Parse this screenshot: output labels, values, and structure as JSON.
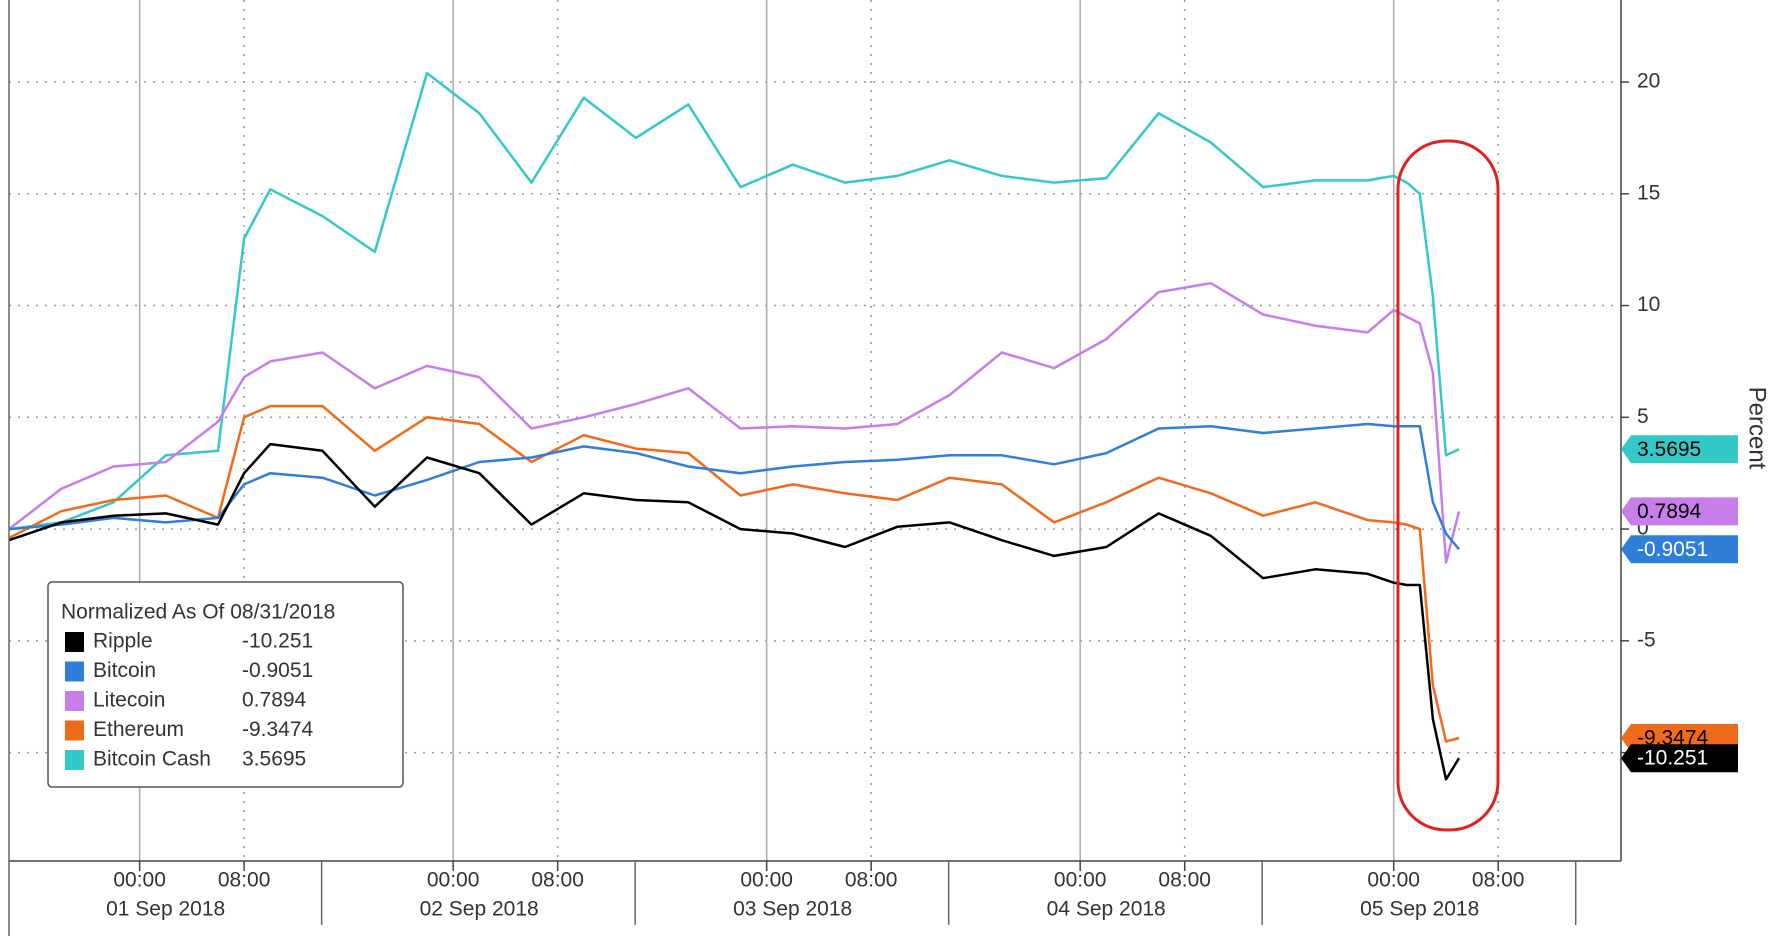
{
  "chart_data": {
    "type": "line",
    "legend_title": "Normalized As Of 08/31/2018",
    "y_label": "Percent",
    "x": [
      "2018-08-31T14:00",
      "2018-08-31T18:00",
      "2018-08-31T22:00",
      "2018-09-01T02:00",
      "2018-09-01T06:00",
      "2018-09-01T08:00",
      "2018-09-01T10:00",
      "2018-09-01T14:00",
      "2018-09-01T18:00",
      "2018-09-01T22:00",
      "2018-09-02T02:00",
      "2018-09-02T06:00",
      "2018-09-02T10:00",
      "2018-09-02T14:00",
      "2018-09-02T18:00",
      "2018-09-02T22:00",
      "2018-09-03T02:00",
      "2018-09-03T06:00",
      "2018-09-03T10:00",
      "2018-09-03T14:00",
      "2018-09-03T18:00",
      "2018-09-03T22:00",
      "2018-09-04T02:00",
      "2018-09-04T06:00",
      "2018-09-04T10:00",
      "2018-09-04T14:00",
      "2018-09-04T18:00",
      "2018-09-04T22:00",
      "2018-09-05T00:00",
      "2018-09-05T01:00",
      "2018-09-05T02:00",
      "2018-09-05T03:00",
      "2018-09-05T04:00",
      "2018-09-05T05:00"
    ],
    "series": [
      {
        "name": "Ripple",
        "color": "#000000",
        "text_color": "#ffffff",
        "last_value": -10.251,
        "values": [
          -0.5,
          0.3,
          0.6,
          0.7,
          0.2,
          2.5,
          3.8,
          3.5,
          1,
          3.2,
          2.5,
          0.2,
          1.6,
          1.3,
          1.2,
          0,
          -0.2,
          -0.8,
          0.1,
          0.3,
          -0.5,
          -1.2,
          -0.8,
          0.7,
          -0.3,
          -2.2,
          -1.8,
          -2,
          -2.4,
          -2.5,
          -2.5,
          -8.5,
          -11.2,
          -10.251
        ]
      },
      {
        "name": "Bitcoin",
        "color": "#2f7fd9",
        "text_color": "#ffffff",
        "last_value": -0.9051,
        "values": [
          0,
          0.2,
          0.5,
          0.3,
          0.5,
          2,
          2.5,
          2.3,
          1.5,
          2.2,
          3,
          3.2,
          3.7,
          3.4,
          2.8,
          2.5,
          2.8,
          3,
          3.1,
          3.3,
          3.3,
          2.9,
          3.4,
          4.5,
          4.6,
          4.3,
          4.5,
          4.7,
          4.6,
          4.6,
          4.6,
          1.2,
          -0.2,
          -0.9051
        ]
      },
      {
        "name": "Litecoin",
        "color": "#c77dea",
        "text_color": "#000000",
        "last_value": 0.7894,
        "values": [
          0,
          1.8,
          2.8,
          3,
          4.8,
          6.8,
          7.5,
          7.9,
          6.3,
          7.3,
          6.8,
          4.5,
          5,
          5.6,
          6.3,
          4.5,
          4.6,
          4.5,
          4.7,
          6,
          7.9,
          7.2,
          8.5,
          10.6,
          11,
          9.6,
          9.1,
          8.8,
          9.8,
          9.5,
          9.2,
          7,
          -1.5,
          0.7894
        ]
      },
      {
        "name": "Ethereum",
        "color": "#f06a1c",
        "text_color": "#000000",
        "last_value": -9.3474,
        "values": [
          -0.4,
          0.8,
          1.3,
          1.5,
          0.5,
          5,
          5.5,
          5.5,
          3.5,
          5,
          4.7,
          3,
          4.2,
          3.6,
          3.4,
          1.5,
          2,
          1.6,
          1.3,
          2.3,
          2,
          0.3,
          1.2,
          2.3,
          1.6,
          0.6,
          1.2,
          0.4,
          0.3,
          0.2,
          0,
          -7,
          -9.5,
          -9.3474
        ]
      },
      {
        "name": "Bitcoin Cash",
        "color": "#33c9c9",
        "text_color": "#000000",
        "last_value": 3.5695,
        "values": [
          0,
          0.3,
          1.2,
          3.3,
          3.5,
          13,
          15.2,
          14,
          12.4,
          20.4,
          18.6,
          15.5,
          19.3,
          17.5,
          19,
          15.3,
          16.3,
          15.5,
          15.8,
          16.5,
          15.8,
          15.5,
          15.7,
          18.6,
          17.3,
          15.3,
          15.6,
          15.6,
          15.8,
          15.5,
          15,
          10.4,
          3.3,
          3.5695
        ]
      }
    ],
    "xlim": [
      "2018-08-31T14:00",
      "2018-09-05T17:24"
    ],
    "xticks": [
      {
        "value": "2018-09-01T00:00",
        "label": "00:00"
      },
      {
        "value": "2018-09-01T08:00",
        "label": "08:00"
      },
      {
        "value": "2018-09-02T00:00",
        "label": "00:00"
      },
      {
        "value": "2018-09-02T08:00",
        "label": "08:00"
      },
      {
        "value": "2018-09-03T00:00",
        "label": "00:00"
      },
      {
        "value": "2018-09-03T08:00",
        "label": "08:00"
      },
      {
        "value": "2018-09-04T00:00",
        "label": "00:00"
      },
      {
        "value": "2018-09-04T08:00",
        "label": "08:00"
      },
      {
        "value": "2018-09-05T00:00",
        "label": "00:00"
      },
      {
        "value": "2018-09-05T08:00",
        "label": "08:00"
      }
    ],
    "x_dates": [
      {
        "value": "2018-09-01T00:00",
        "label": "01 Sep 2018"
      },
      {
        "value": "2018-09-02T00:00",
        "label": "02 Sep 2018"
      },
      {
        "value": "2018-09-03T00:00",
        "label": "03 Sep 2018"
      },
      {
        "value": "2018-09-04T00:00",
        "label": "04 Sep 2018"
      },
      {
        "value": "2018-09-05T00:00",
        "label": "05 Sep 2018"
      }
    ],
    "ylim": [
      -14.85,
      23.67
    ],
    "yticks": [
      -10,
      -5,
      0,
      5,
      10,
      15,
      20
    ],
    "grid": true
  }
}
